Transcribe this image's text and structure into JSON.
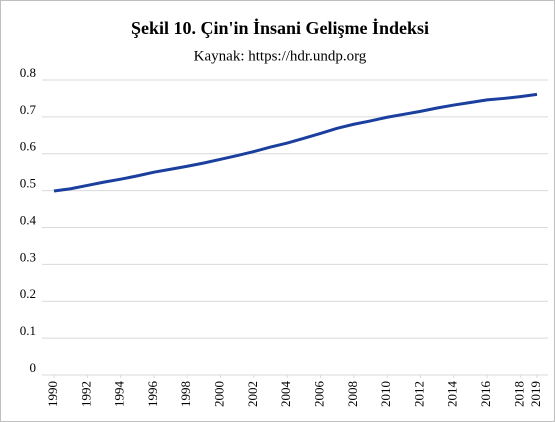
{
  "chart_data": {
    "type": "line",
    "title": "Şekil 10. Çin'in İnsani Gelişme İndeksi",
    "subtitle": "Kaynak: https://hdr.undp.org",
    "x": [
      1990,
      1991,
      1992,
      1993,
      1994,
      1995,
      1996,
      1997,
      1998,
      1999,
      2000,
      2001,
      2002,
      2003,
      2004,
      2005,
      2006,
      2007,
      2008,
      2009,
      2010,
      2011,
      2012,
      2013,
      2014,
      2015,
      2016,
      2017,
      2018,
      2019
    ],
    "series": [
      {
        "color": "#1b3f9e",
        "values": [
          0.499,
          0.505,
          0.514,
          0.523,
          0.531,
          0.54,
          0.55,
          0.558,
          0.566,
          0.575,
          0.585,
          0.595,
          0.606,
          0.618,
          0.629,
          0.642,
          0.655,
          0.669,
          0.68,
          0.689,
          0.699,
          0.707,
          0.715,
          0.724,
          0.732,
          0.739,
          0.746,
          0.75,
          0.755,
          0.761
        ]
      }
    ],
    "xlim": [
      1990,
      2019
    ],
    "xticks": [
      1990,
      1992,
      1994,
      1996,
      1998,
      2000,
      2002,
      2004,
      2006,
      2008,
      2010,
      2012,
      2014,
      2016,
      2018,
      2019
    ],
    "ylim": [
      0,
      0.8
    ],
    "yticks": [
      0,
      0.1,
      0.2,
      0.3,
      0.4,
      0.5,
      0.6,
      0.7,
      0.8
    ],
    "grid": true
  }
}
